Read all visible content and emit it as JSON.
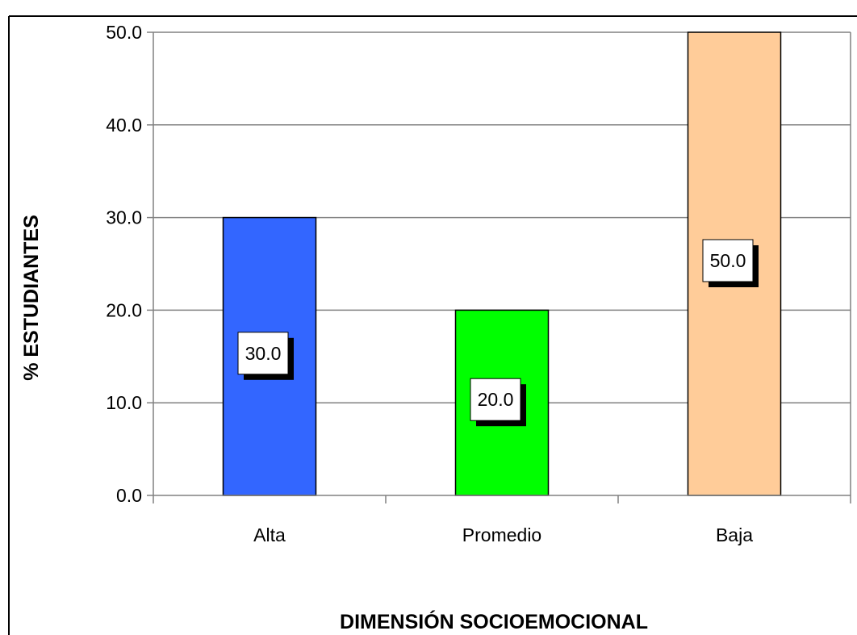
{
  "chart_data": {
    "type": "bar",
    "categories": [
      "Alta",
      "Promedio",
      "Baja"
    ],
    "values": [
      30.0,
      20.0,
      50.0
    ],
    "data_labels": [
      "30.0",
      "20.0",
      "50.0"
    ],
    "colors": [
      "#3366FF",
      "#00FF00",
      "#FFCC99"
    ],
    "xlabel": "DIMENSIÓN SOCIOEMOCIONAL",
    "ylabel": "% ESTUDIANTES",
    "ylim": [
      0,
      50
    ],
    "yticks": [
      "0.0",
      "10.0",
      "20.0",
      "30.0",
      "40.0",
      "50.0"
    ],
    "grid": true,
    "legend": "none"
  }
}
